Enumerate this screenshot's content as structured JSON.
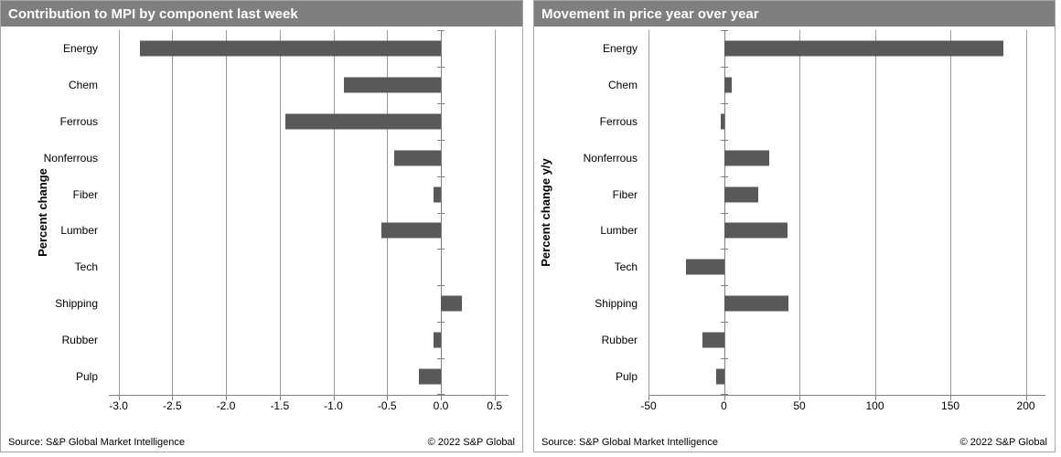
{
  "colors": {
    "header_background": "#7f7f7f",
    "header_text": "#ffffff",
    "bar": "#595959",
    "gridline": "#999999",
    "axis_line": "#808080",
    "panel_border": "#a6a6a6"
  },
  "chart_data": [
    {
      "type": "bar",
      "orientation": "horizontal",
      "title": "Contribution to MPI by component last week",
      "ylabel": "Percent change",
      "xlabel": "",
      "categories": [
        "Energy",
        "Chem",
        "Ferrous",
        "Nonferrous",
        "Fiber",
        "Lumber",
        "Tech",
        "Shipping",
        "Rubber",
        "Pulp"
      ],
      "values": [
        -2.8,
        -0.9,
        -1.45,
        -0.43,
        -0.07,
        -0.55,
        0.0,
        0.2,
        -0.07,
        -0.2
      ],
      "xticks": [
        {
          "v": -3.0,
          "label": "-3.0"
        },
        {
          "v": -2.5,
          "label": "-2.5"
        },
        {
          "v": -2.0,
          "label": "-2.0"
        },
        {
          "v": -1.5,
          "label": "-1.5"
        },
        {
          "v": -1.0,
          "label": "-1.0"
        },
        {
          "v": -0.5,
          "label": "-0.5"
        },
        {
          "v": 0.0,
          "label": "0.0"
        },
        {
          "v": 0.5,
          "label": "0.5"
        }
      ],
      "axis_range": [
        -3.09,
        0.63
      ],
      "grid": "vertical",
      "legend": "none",
      "bar_color": "#595959",
      "source": "Source: S&P Global Market Intelligence",
      "copyright": "© 2022 S&P Global"
    },
    {
      "type": "bar",
      "orientation": "horizontal",
      "title": "Movement in price year over year",
      "ylabel": "Percent change y/y",
      "xlabel": "",
      "categories": [
        "Energy",
        "Chem",
        "Ferrous",
        "Nonferrous",
        "Fiber",
        "Lumber",
        "Tech",
        "Shipping",
        "Rubber",
        "Pulp"
      ],
      "values": [
        185,
        5,
        -2,
        30,
        23,
        42,
        -25,
        43,
        -14,
        -5
      ],
      "xticks": [
        {
          "v": -50,
          "label": "-50"
        },
        {
          "v": 0,
          "label": "0"
        },
        {
          "v": 50,
          "label": "50"
        },
        {
          "v": 100,
          "label": "100"
        },
        {
          "v": 150,
          "label": "150"
        },
        {
          "v": 200,
          "label": "200"
        }
      ],
      "axis_range": [
        -50,
        213
      ],
      "grid": "vertical",
      "legend": "none",
      "bar_color": "#595959",
      "source": "Source: S&P Global Market Intelligence",
      "copyright": "© 2022 S&P Global"
    }
  ]
}
